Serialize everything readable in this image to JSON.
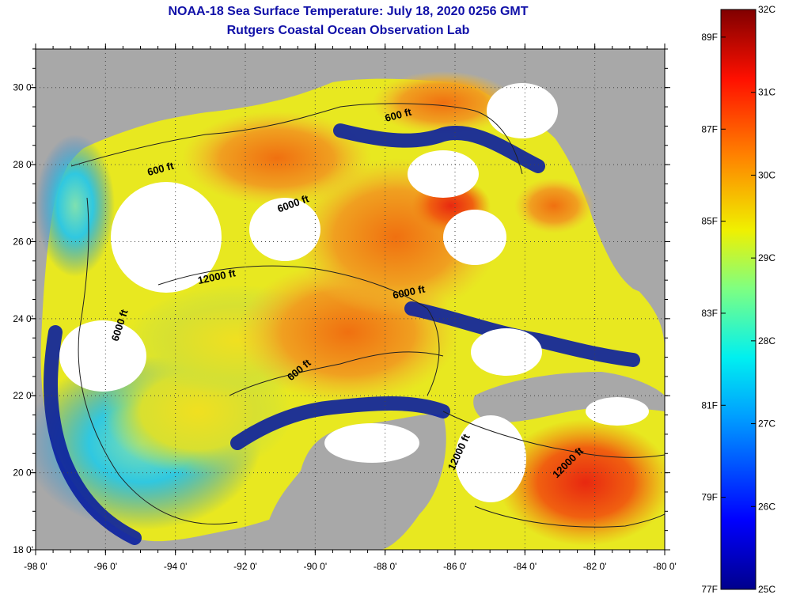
{
  "title": {
    "line1": "NOAA-18 Sea Surface Temperature:  July 18, 2020 0256 GMT",
    "line2": "Rutgers Coastal Ocean Observation Lab"
  },
  "map": {
    "lon_range": [
      -98,
      -80
    ],
    "lat_range": [
      18,
      31
    ],
    "lon_ticks": [
      {
        "value": -98,
        "label": "-98 0'"
      },
      {
        "value": -96,
        "label": "-96 0'"
      },
      {
        "value": -94,
        "label": "-94 0'"
      },
      {
        "value": -92,
        "label": "-92 0'"
      },
      {
        "value": -90,
        "label": "-90 0'"
      },
      {
        "value": -88,
        "label": "-88 0'"
      },
      {
        "value": -86,
        "label": "-86 0'"
      },
      {
        "value": -84,
        "label": "-84 0'"
      },
      {
        "value": -82,
        "label": "-82 0'"
      },
      {
        "value": -80,
        "label": "-80 0'"
      }
    ],
    "lat_ticks": [
      {
        "value": 18,
        "label": "18 0'"
      },
      {
        "value": 20,
        "label": "20 0'"
      },
      {
        "value": 22,
        "label": "22 0'"
      },
      {
        "value": 24,
        "label": "24 0'"
      },
      {
        "value": 26,
        "label": "26 0'"
      },
      {
        "value": 28,
        "label": "28 0'"
      },
      {
        "value": 30,
        "label": "30 0'"
      }
    ],
    "depth_labels": [
      {
        "text": "600 ft",
        "lon": -94.4,
        "lat": 27.8,
        "rotate": -15
      },
      {
        "text": "600 ft",
        "lon": -87.6,
        "lat": 29.2,
        "rotate": -15
      },
      {
        "text": "6000 ft",
        "lon": -90.6,
        "lat": 26.9,
        "rotate": -20
      },
      {
        "text": "6000 ft",
        "lon": -87.3,
        "lat": 24.6,
        "rotate": -12
      },
      {
        "text": "6000 ft",
        "lon": -95.5,
        "lat": 23.8,
        "rotate": -72
      },
      {
        "text": "12000 ft",
        "lon": -92.8,
        "lat": 25.0,
        "rotate": -12
      },
      {
        "text": "600 ft",
        "lon": -90.4,
        "lat": 22.6,
        "rotate": -40
      },
      {
        "text": "12000 ft",
        "lon": -85.8,
        "lat": 20.5,
        "rotate": -65
      },
      {
        "text": "12000 ft",
        "lon": -82.7,
        "lat": 20.2,
        "rotate": -45
      }
    ],
    "colors": {
      "land": "#a8a8a8",
      "cloud": "#ffffff",
      "water_cold": "#0a1fa0",
      "water_cool": "#22c4e0",
      "water_mid": "#e8e820",
      "water_warm": "#f08010",
      "water_hot": "#e02010"
    }
  },
  "colorbar": {
    "min_c": 25,
    "max_c": 32,
    "celsius_labels": [
      {
        "value": 25,
        "label": "25C"
      },
      {
        "value": 26,
        "label": "26C"
      },
      {
        "value": 27,
        "label": "27C"
      },
      {
        "value": 28,
        "label": "28C"
      },
      {
        "value": 29,
        "label": "29C"
      },
      {
        "value": 30,
        "label": "30C"
      },
      {
        "value": 31,
        "label": "31C"
      },
      {
        "value": 32,
        "label": "32C"
      }
    ],
    "fahrenheit_labels": [
      {
        "value": 77,
        "label": "77F"
      },
      {
        "value": 79,
        "label": "79F"
      },
      {
        "value": 81,
        "label": "81F"
      },
      {
        "value": 83,
        "label": "83F"
      },
      {
        "value": 85,
        "label": "85F"
      },
      {
        "value": 87,
        "label": "87F"
      },
      {
        "value": 89,
        "label": "89F"
      }
    ]
  }
}
